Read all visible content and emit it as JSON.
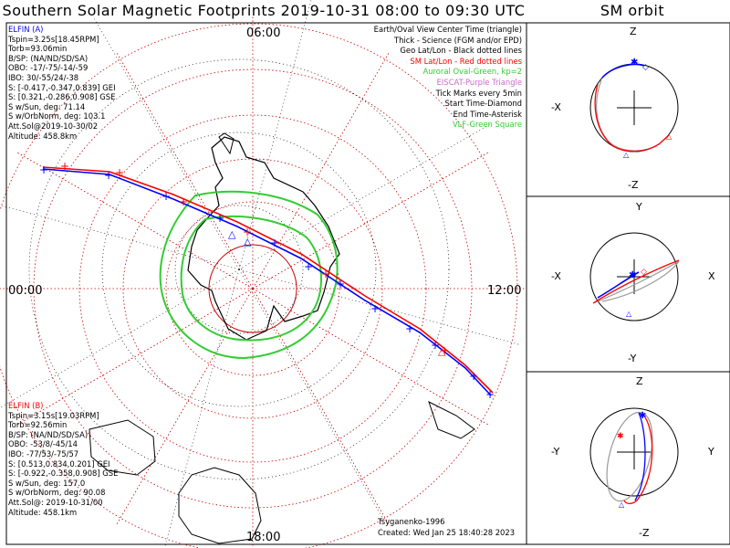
{
  "title": "Southern Solar Magnetic Footprints 2019-10-31 08:00 to 09:30 UTC",
  "sm_orbit_title": "SM orbit",
  "mlt_labels": {
    "top": "06:00",
    "left": "00:00",
    "right": "12:00",
    "bottom": "18:00"
  },
  "colors": {
    "sat_a": "#0000ff",
    "sat_b": "#ff0000",
    "auroral": "#33cc33",
    "grid": "#cc0000",
    "purple": "#cc66cc",
    "green_text": "#33cc33"
  },
  "sat_a": {
    "lines": [
      "ELFIN (A)",
      "Tspin=3.25s[18.45RPM]",
      "Torb=93.06min",
      "B/SP: (NA/ND/SD/SA)",
      "OBO: -17/-75/-14/-59",
      "IBO: 30/-55/24/-38",
      "S: [-0.417,-0.347,0.839] GEI",
      "S: [0.321,-0.286,0.908] GSE",
      "S w/Sun, deg: 71.14",
      "S w/OrbNorm, deg: 103.1",
      "Att.Sol@2019-10-30/02",
      "Altitude: 458.8km"
    ]
  },
  "sat_b": {
    "lines": [
      "ELFIN (B)",
      "Tspin=3.15s[19.03RPM]",
      "Torb=92.56min",
      "B/SP: (NA/ND/SD/SA)",
      "OBO: -53/8/-45/14",
      "IBO: -77/53/-75/57",
      "S: [0.513,0.834,0.201] GEI",
      "S: [-0.922,-0.358,0.908] GSE",
      "S w/Sun, deg: 157.0",
      "S w/OrbNorm, deg: 90.08",
      "Att.Sol@: 2019-10-31/00",
      "Altitude: 458.1km"
    ]
  },
  "legend": [
    {
      "text": "Earth/Oval View Center Time (triangle)",
      "color": "#000000"
    },
    {
      "text": "Thick - Science (FGM and/or EPD)",
      "color": "#000000"
    },
    {
      "text": "Geo Lat/Lon - Black dotted lines",
      "color": "#000000"
    },
    {
      "text": "SM Lat/Lon - Red dotted lines",
      "color": "#ff0000"
    },
    {
      "text": "Auroral Oval-Green, kp=2",
      "color": "#33cc33"
    },
    {
      "text": "EISCAT-Purple Triangle",
      "color": "#cc66cc"
    },
    {
      "text": "Tick Marks every 5min",
      "color": "#000000"
    },
    {
      "text": "Start Time-Diamond",
      "color": "#000000"
    },
    {
      "text": "End Time-Asterisk",
      "color": "#000000"
    },
    {
      "text": "VLF-Green Square",
      "color": "#33cc33"
    }
  ],
  "footer": {
    "model": "Tsyganenko-1996",
    "created": "Created: Wed Jan 25 18:40:28 2023"
  },
  "sm_panels": [
    {
      "top": "Z",
      "bottom": "-Z",
      "left": "-X",
      "right": ""
    },
    {
      "top": "Y",
      "bottom": "-Y",
      "left": "-X",
      "right": "X"
    },
    {
      "top": "Z",
      "bottom": "-Z",
      "left": "-Y",
      "right": "Y"
    }
  ],
  "chart_data": {
    "type": "scatter",
    "title": "Southern Solar Magnetic Footprints 2019-10-31 08:00 to 09:30 UTC",
    "projection": "polar SM, southern hemisphere",
    "mlt_ticks": [
      "00:00",
      "06:00",
      "12:00",
      "18:00"
    ],
    "series": [
      {
        "name": "ELFIN (A)",
        "color": "#0000ff"
      },
      {
        "name": "ELFIN (B)",
        "color": "#ff0000"
      }
    ],
    "tick_interval": "5min",
    "grid": true
  }
}
